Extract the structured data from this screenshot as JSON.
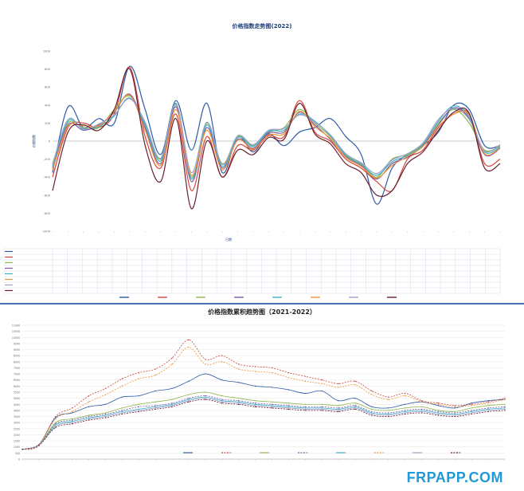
{
  "top_title": "价格指数走势图(2022)",
  "bottom_title": "价格指数累积趋势图（2021-2022）",
  "watermark": "FRPAPP.COM",
  "colors": [
    "#2e5aa8",
    "#d1463b",
    "#8db84a",
    "#7e5aa8",
    "#3fb0c9",
    "#f0953a",
    "#9aa2c9",
    "#6b1f2e"
  ],
  "chart_data": [
    {
      "type": "line",
      "ylim": [
        -1000,
        1000
      ],
      "yticks": [
        -1000,
        -800,
        -600,
        -400,
        -200,
        0,
        200,
        400,
        600,
        800,
        1000
      ],
      "xlabel": "日期",
      "ylabel": "价格指数",
      "series": [
        {
          "values": [
            -350,
            380,
            150,
            250,
            200,
            830,
            350,
            -150,
            450,
            -100,
            420,
            -350,
            50,
            -120,
            80,
            -50,
            100,
            150,
            250,
            50,
            -150,
            -700,
            -300,
            -150,
            -50,
            100,
            400,
            350,
            -50,
            -50
          ]
        },
        {
          "values": [
            -400,
            150,
            200,
            150,
            300,
            820,
            50,
            -300,
            300,
            -550,
            50,
            -400,
            -50,
            -100,
            60,
            50,
            450,
            100,
            0,
            -200,
            -300,
            -450,
            -550,
            -200,
            -100,
            150,
            300,
            300,
            -250,
            -200
          ]
        },
        {
          "values": [
            -250,
            200,
            150,
            150,
            350,
            500,
            200,
            -200,
            400,
            -400,
            200,
            -250,
            50,
            -50,
            100,
            150,
            350,
            200,
            50,
            -150,
            -250,
            -400,
            -200,
            -150,
            -30,
            200,
            350,
            200,
            -100,
            -50
          ]
        },
        {
          "values": [
            -300,
            180,
            120,
            180,
            320,
            520,
            150,
            -250,
            380,
            -450,
            150,
            -300,
            20,
            -80,
            90,
            100,
            320,
            180,
            20,
            -170,
            -270,
            -420,
            -250,
            -180,
            -50,
            180,
            370,
            250,
            -150,
            -80
          ]
        },
        {
          "values": [
            -280,
            220,
            140,
            160,
            280,
            480,
            180,
            -220,
            420,
            -420,
            180,
            -280,
            40,
            -60,
            110,
            120,
            300,
            220,
            60,
            -160,
            -260,
            -380,
            -230,
            -160,
            -40,
            220,
            390,
            270,
            -120,
            -60
          ]
        },
        {
          "values": [
            -320,
            160,
            170,
            170,
            330,
            510,
            120,
            -270,
            350,
            -380,
            120,
            -320,
            10,
            -90,
            70,
            80,
            330,
            160,
            30,
            -180,
            -280,
            -410,
            -270,
            -170,
            -60,
            160,
            300,
            290,
            -140,
            -70
          ]
        },
        {
          "values": [
            -260,
            240,
            130,
            190,
            290,
            470,
            210,
            -190,
            410,
            -350,
            210,
            -260,
            60,
            -40,
            120,
            140,
            290,
            210,
            70,
            -140,
            -240,
            -360,
            -210,
            -140,
            -20,
            240,
            360,
            240,
            -110,
            -40
          ]
        },
        {
          "values": [
            -550,
            100,
            180,
            120,
            350,
            800,
            -50,
            -450,
            250,
            -750,
            0,
            -400,
            -100,
            -150,
            40,
            20,
            420,
            80,
            -30,
            -250,
            -350,
            -600,
            -550,
            -250,
            -120,
            120,
            320,
            310,
            -300,
            -250
          ]
        }
      ]
    },
    {
      "type": "line",
      "ylim": [
        0,
        11000
      ],
      "yticks": [
        0,
        500,
        1000,
        1500,
        2000,
        2500,
        3000,
        3500,
        4000,
        4500,
        5000,
        5500,
        6000,
        6500,
        7000,
        7500,
        8000,
        8500,
        9000,
        9500,
        10000,
        10500,
        11000
      ],
      "series": [
        {
          "values": [
            800,
            1200,
            3400,
            3800,
            4300,
            4500,
            5100,
            5200,
            5600,
            5800,
            6400,
            7000,
            6500,
            6300,
            6000,
            5900,
            5700,
            5400,
            5600,
            4800,
            5000,
            4300,
            4200,
            4500,
            4700,
            4400,
            4200,
            4600,
            4800,
            4900
          ]
        },
        {
          "values": [
            800,
            1100,
            3500,
            4200,
            5200,
            5800,
            6600,
            7100,
            7400,
            8300,
            9800,
            8200,
            8500,
            7800,
            7600,
            7500,
            7100,
            6800,
            6500,
            6200,
            6400,
            5600,
            5100,
            5400,
            4800,
            4600,
            4400,
            4500,
            4700,
            5000
          ]
        },
        {
          "values": [
            800,
            1150,
            3000,
            3300,
            3600,
            3800,
            4200,
            4500,
            4700,
            4900,
            5300,
            5500,
            5200,
            5000,
            4800,
            4700,
            4600,
            4500,
            4500,
            4400,
            4600,
            4100,
            4000,
            4200,
            4300,
            4000,
            3900,
            4200,
            4400,
            4500
          ]
        },
        {
          "values": [
            800,
            1150,
            2900,
            3200,
            3500,
            3700,
            4000,
            4300,
            4400,
            4600,
            5000,
            5200,
            4900,
            4800,
            4600,
            4500,
            4400,
            4300,
            4300,
            4200,
            4400,
            3900,
            3800,
            4000,
            4100,
            3900,
            3800,
            4000,
            4200,
            4300
          ]
        },
        {
          "values": [
            800,
            1150,
            2800,
            3100,
            3400,
            3600,
            3900,
            4100,
            4300,
            4500,
            4900,
            5100,
            4800,
            4700,
            4500,
            4400,
            4300,
            4200,
            4200,
            4100,
            4300,
            3800,
            3700,
            3900,
            4000,
            3800,
            3700,
            3900,
            4100,
            4200
          ]
        },
        {
          "values": [
            800,
            1200,
            3300,
            3900,
            4700,
            5300,
            6000,
            6600,
            6900,
            7800,
            9200,
            7800,
            8000,
            7400,
            7200,
            7100,
            6700,
            6400,
            6200,
            5900,
            6100,
            5300,
            4900,
            5200,
            4700,
            4500,
            4300,
            4400,
            4600,
            4900
          ]
        },
        {
          "values": [
            800,
            1150,
            2700,
            3000,
            3300,
            3500,
            3800,
            4000,
            4200,
            4400,
            4800,
            5000,
            4700,
            4600,
            4400,
            4300,
            4200,
            4100,
            4100,
            4000,
            4200,
            3700,
            3600,
            3800,
            3900,
            3700,
            3600,
            3800,
            4000,
            4100
          ]
        },
        {
          "values": [
            800,
            1150,
            2600,
            2900,
            3200,
            3400,
            3700,
            3900,
            4100,
            4300,
            4700,
            4900,
            4600,
            4500,
            4300,
            4200,
            4100,
            4000,
            4000,
            3900,
            4100,
            3600,
            3500,
            3700,
            3800,
            3600,
            3500,
            3700,
            3900,
            4000
          ]
        }
      ]
    }
  ]
}
